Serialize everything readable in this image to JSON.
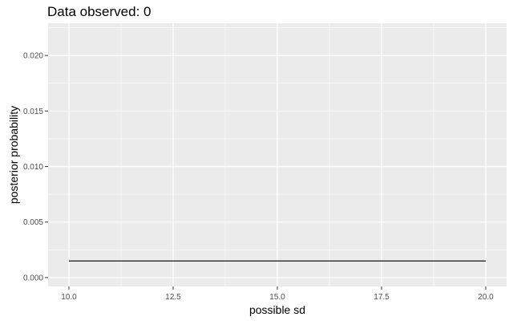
{
  "chart_data": {
    "type": "line",
    "title": "Data observed: 0",
    "xlabel": "possible sd",
    "ylabel": "posterior probability",
    "xlim": [
      9.5,
      20.5
    ],
    "ylim": [
      -0.0008,
      0.0229
    ],
    "x_ticks": [
      10,
      12.5,
      15,
      17.5,
      20
    ],
    "x_tick_labels": [
      "10.0",
      "12.5",
      "15.0",
      "17.5",
      "20.0"
    ],
    "y_ticks": [
      0,
      0.005,
      0.01,
      0.015,
      0.02
    ],
    "y_tick_labels": [
      "0.000",
      "0.005",
      "0.010",
      "0.015",
      "0.020"
    ],
    "grid": true,
    "legend": "none",
    "series": [
      {
        "x": [
          10,
          20
        ],
        "y": [
          0.0015,
          0.0015
        ]
      }
    ],
    "colors": {
      "panel_background": "#EBEBEB",
      "grid_major": "#FFFFFF",
      "line": "#000000",
      "tick_label": "#4D4D4D",
      "axis_title": "#000000"
    }
  }
}
